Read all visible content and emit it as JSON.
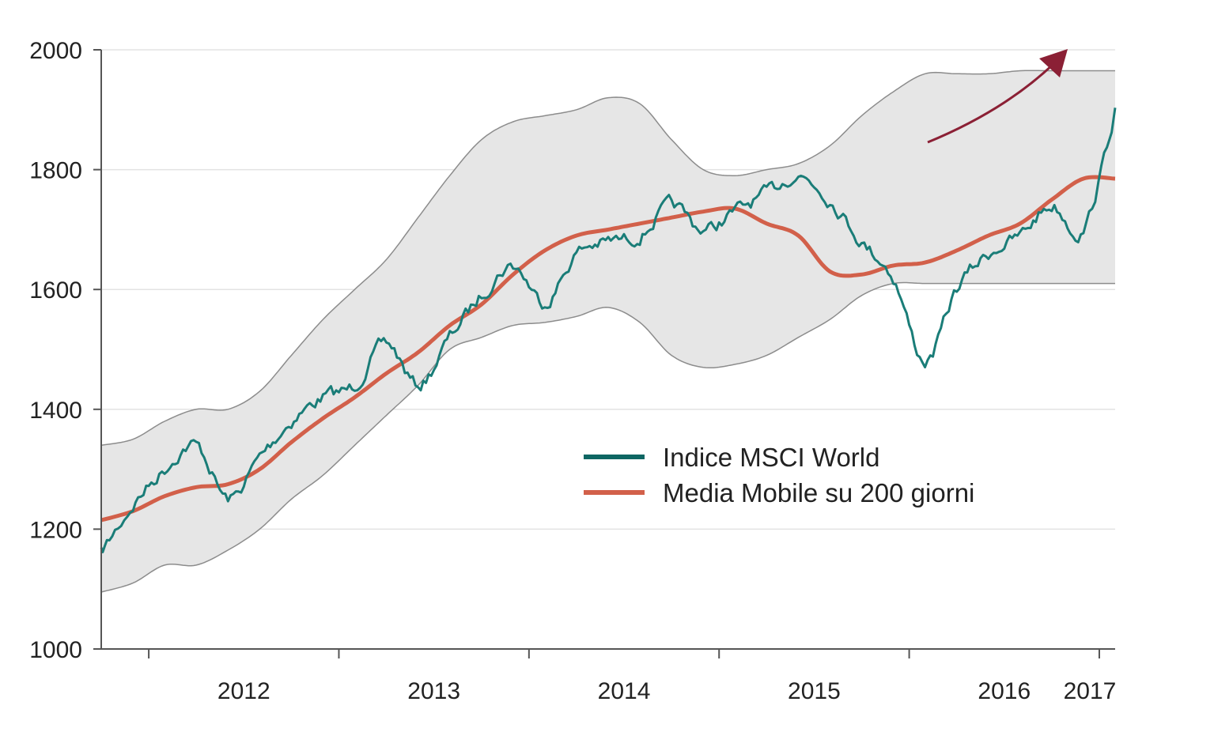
{
  "chart_data": {
    "type": "line",
    "title": "",
    "xlabel": "",
    "ylabel": "",
    "ylim": [
      1000,
      2000
    ],
    "y_ticks": [
      "1000",
      "1200",
      "1400",
      "1600",
      "1800",
      "2000"
    ],
    "x_tick_labels": [
      "2012",
      "2013",
      "2014",
      "2015",
      "2016",
      "2017"
    ],
    "grid": "horizontal",
    "legend_position": "center-right",
    "band_color": "#e6e6e6",
    "band_edge_color": "#8c8c8c",
    "arrow_color": "#8b2035",
    "x": [
      "2011-10",
      "2011-12",
      "2012-02",
      "2012-04",
      "2012-06",
      "2012-08",
      "2012-10",
      "2012-12",
      "2013-02",
      "2013-04",
      "2013-06",
      "2013-08",
      "2013-10",
      "2013-12",
      "2014-02",
      "2014-04",
      "2014-06",
      "2014-08",
      "2014-10",
      "2014-12",
      "2015-02",
      "2015-04",
      "2015-06",
      "2015-08",
      "2015-10",
      "2015-12",
      "2016-02",
      "2016-04",
      "2016-06",
      "2016-08",
      "2016-10",
      "2016-12",
      "2017-02"
    ],
    "series": [
      {
        "name": "Indice MSCI World",
        "color": "#1a7d78",
        "values": [
          1160,
          1240,
          1300,
          1340,
          1250,
          1320,
          1380,
          1420,
          1440,
          1510,
          1440,
          1520,
          1590,
          1640,
          1580,
          1660,
          1680,
          1690,
          1740,
          1700,
          1730,
          1760,
          1790,
          1750,
          1680,
          1620,
          1480,
          1600,
          1660,
          1690,
          1740,
          1700,
          1900
        ]
      },
      {
        "name": "Media Mobile su 200 giorni",
        "color": "#d2604a",
        "values": [
          1215,
          1230,
          1255,
          1270,
          1275,
          1300,
          1345,
          1385,
          1420,
          1460,
          1495,
          1540,
          1575,
          1625,
          1665,
          1690,
          1700,
          1710,
          1720,
          1730,
          1735,
          1710,
          1690,
          1630,
          1625,
          1640,
          1645,
          1665,
          1690,
          1710,
          1750,
          1785,
          1785
        ]
      },
      {
        "name": "",
        "color": "#8c8c8c",
        "values": [
          1340,
          1350,
          1380,
          1400,
          1400,
          1430,
          1490,
          1550,
          1600,
          1650,
          1720,
          1790,
          1850,
          1880,
          1890,
          1900,
          1920,
          1910,
          1850,
          1800,
          1790,
          1800,
          1810,
          1840,
          1890,
          1930,
          1960,
          1960,
          1960,
          1965,
          1965,
          1965,
          1965
        ]
      },
      {
        "name": "",
        "color": "#8c8c8c",
        "values": [
          1095,
          1110,
          1140,
          1140,
          1165,
          1200,
          1250,
          1290,
          1340,
          1390,
          1440,
          1500,
          1520,
          1540,
          1545,
          1555,
          1570,
          1545,
          1490,
          1470,
          1475,
          1490,
          1520,
          1550,
          1590,
          1610,
          1610,
          1610,
          1610,
          1610,
          1610,
          1610,
          1610
        ]
      }
    ],
    "annotations": [
      {
        "type": "arrow",
        "direction": "up-right"
      }
    ]
  }
}
